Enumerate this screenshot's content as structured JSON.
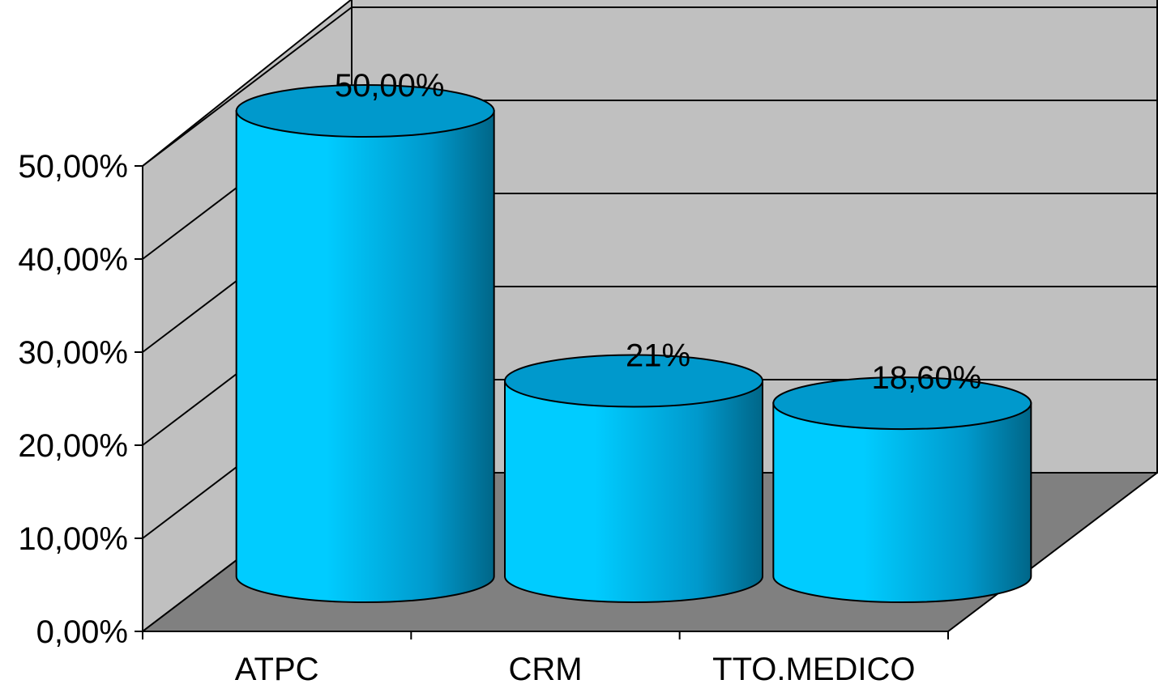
{
  "chart_data": {
    "type": "bar",
    "style": "3d-cylinder",
    "categories": [
      "ATPC",
      "CRM",
      "TTO.MEDICO"
    ],
    "values": [
      50.0,
      21.0,
      18.6
    ],
    "data_labels": [
      "50,00%",
      "21%",
      "18,60%"
    ],
    "y_ticks": [
      "0,00%",
      "10,00%",
      "20,00%",
      "30,00%",
      "40,00%",
      "50,00%"
    ],
    "ylim": [
      0,
      50
    ],
    "grid": true,
    "legend": "none",
    "title": "",
    "xlabel": "",
    "ylabel": "",
    "colors": {
      "bar_light": "#00ccff",
      "bar_mid": "#0099cc",
      "bar_dark": "#006688",
      "back_wall": "#c0c0c0",
      "floor": "#808080",
      "gridline": "#000000"
    }
  }
}
